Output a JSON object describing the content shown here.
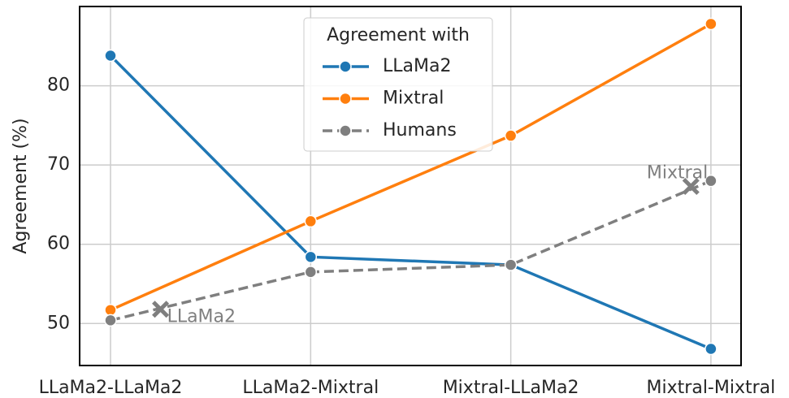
{
  "chart_data": {
    "type": "line",
    "ylabel": "Agreement (%)",
    "categories": [
      "LLaMa2-LLaMa2",
      "LLaMa2-Mixtral",
      "Mixtral-LLaMa2",
      "Mixtral-Mixtral"
    ],
    "series": [
      {
        "name": "LLaMa2",
        "color": "#1f77b4",
        "dashed": false,
        "values": [
          83.8,
          58.4,
          57.4,
          46.8
        ]
      },
      {
        "name": "Mixtral",
        "color": "#ff7f0e",
        "dashed": false,
        "values": [
          51.7,
          62.9,
          73.7,
          87.8
        ]
      },
      {
        "name": "Humans",
        "color": "#7f7f7f",
        "dashed": true,
        "values": [
          50.4,
          56.5,
          57.4,
          68.0
        ]
      }
    ],
    "legend_title": "Agreement with",
    "legend": "upper center",
    "annotations": [
      {
        "text": "LLaMa2",
        "x": 0.25,
        "y": 51.8
      },
      {
        "text": "Mixtral",
        "x": 2.9,
        "y": 67.3
      }
    ],
    "ylim": [
      44.7,
      90
    ],
    "yticks": [
      50,
      60,
      70,
      80
    ],
    "grid": true
  }
}
